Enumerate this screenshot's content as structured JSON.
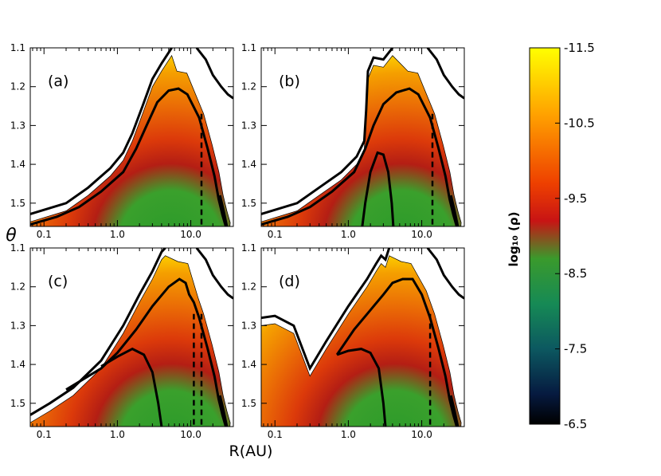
{
  "chart_data": {
    "type": "heatmap",
    "xlabel": "R(AU)",
    "ylabel": "θ",
    "x_scale": "log",
    "x_ticks": [
      "0.1",
      "1.0",
      "10.0"
    ],
    "y_ticks": [
      "1.1",
      "1.2",
      "1.3",
      "1.4",
      "1.5"
    ],
    "ylim": [
      1.1,
      1.56
    ],
    "xlim": [
      0.065,
      38
    ],
    "panels": [
      {
        "label": "(a)",
        "dashed_r": [
          14.0
        ],
        "upper_contour": [
          [
            0.065,
            1.528
          ],
          [
            0.2,
            1.5
          ],
          [
            0.4,
            1.46
          ],
          [
            0.8,
            1.41
          ],
          [
            1.2,
            1.37
          ],
          [
            1.6,
            1.32
          ],
          [
            2.2,
            1.25
          ],
          [
            3.0,
            1.18
          ],
          [
            4.0,
            1.14
          ],
          [
            5.5,
            1.1
          ]
        ],
        "upper_right": [
          [
            12,
            1.1
          ],
          [
            16,
            1.13
          ],
          [
            20,
            1.17
          ],
          [
            26,
            1.2
          ],
          [
            32,
            1.22
          ],
          [
            38,
            1.23
          ]
        ],
        "surface_contour": [
          [
            0.065,
            1.555
          ],
          [
            0.15,
            1.535
          ],
          [
            0.3,
            1.51
          ],
          [
            0.6,
            1.47
          ],
          [
            1.2,
            1.42
          ],
          [
            1.8,
            1.36
          ],
          [
            2.5,
            1.3
          ],
          [
            3.5,
            1.24
          ],
          [
            5,
            1.21
          ],
          [
            6.8,
            1.205
          ],
          [
            9,
            1.22
          ],
          [
            13,
            1.28
          ],
          [
            17,
            1.36
          ],
          [
            21,
            1.43
          ],
          [
            24,
            1.49
          ],
          [
            27,
            1.53
          ],
          [
            30,
            1.56
          ]
        ],
        "outer_contour": [
          [
            25,
            1.48
          ],
          [
            28,
            1.52
          ],
          [
            31,
            1.56
          ]
        ],
        "inner_contour": []
      },
      {
        "label": "(b)",
        "dashed_r": [
          14.0
        ],
        "upper_contour": [
          [
            0.065,
            1.528
          ],
          [
            0.2,
            1.5
          ],
          [
            0.4,
            1.46
          ],
          [
            0.8,
            1.42
          ],
          [
            1.3,
            1.38
          ],
          [
            1.65,
            1.34
          ],
          [
            1.75,
            1.26
          ],
          [
            1.85,
            1.16
          ],
          [
            2.2,
            1.125
          ],
          [
            3.0,
            1.13
          ],
          [
            4.0,
            1.1
          ]
        ],
        "upper_right": [
          [
            12,
            1.1
          ],
          [
            16,
            1.13
          ],
          [
            20,
            1.17
          ],
          [
            26,
            1.2
          ],
          [
            32,
            1.22
          ],
          [
            38,
            1.23
          ]
        ],
        "surface_contour": [
          [
            0.065,
            1.555
          ],
          [
            0.15,
            1.535
          ],
          [
            0.3,
            1.51
          ],
          [
            0.6,
            1.47
          ],
          [
            1.2,
            1.42
          ],
          [
            1.7,
            1.36
          ],
          [
            2.2,
            1.3
          ],
          [
            3,
            1.245
          ],
          [
            4.5,
            1.215
          ],
          [
            6.8,
            1.205
          ],
          [
            9,
            1.22
          ],
          [
            13,
            1.28
          ],
          [
            17,
            1.36
          ],
          [
            21,
            1.43
          ],
          [
            24,
            1.49
          ],
          [
            27,
            1.53
          ],
          [
            30,
            1.56
          ]
        ],
        "outer_contour": [
          [
            25,
            1.48
          ],
          [
            28,
            1.52
          ],
          [
            31,
            1.56
          ]
        ],
        "inner_contour": [
          [
            1.55,
            1.56
          ],
          [
            1.7,
            1.5
          ],
          [
            2.0,
            1.42
          ],
          [
            2.5,
            1.37
          ],
          [
            3.0,
            1.375
          ],
          [
            3.5,
            1.42
          ],
          [
            3.9,
            1.5
          ],
          [
            4.1,
            1.56
          ]
        ]
      },
      {
        "label": "(c)",
        "dashed_r": [
          11.0,
          14.0
        ],
        "upper_contour": [
          [
            0.065,
            1.53
          ],
          [
            0.12,
            1.5
          ],
          [
            0.25,
            1.46
          ],
          [
            0.6,
            1.39
          ],
          [
            1.2,
            1.3
          ],
          [
            2.0,
            1.22
          ],
          [
            3.0,
            1.16
          ],
          [
            4.0,
            1.11
          ],
          [
            4.5,
            1.1
          ]
        ],
        "upper_right": [
          [
            12,
            1.1
          ],
          [
            16,
            1.13
          ],
          [
            20,
            1.17
          ],
          [
            26,
            1.2
          ],
          [
            32,
            1.22
          ],
          [
            38,
            1.23
          ]
        ],
        "surface_contour": [
          [
            0.2,
            1.465
          ],
          [
            0.6,
            1.41
          ],
          [
            1.0,
            1.37
          ],
          [
            1.8,
            1.31
          ],
          [
            3,
            1.25
          ],
          [
            5,
            1.2
          ],
          [
            7,
            1.18
          ],
          [
            8.5,
            1.19
          ],
          [
            9.5,
            1.22
          ],
          [
            11,
            1.24
          ],
          [
            13,
            1.28
          ],
          [
            17,
            1.36
          ],
          [
            21,
            1.43
          ],
          [
            24,
            1.49
          ],
          [
            27,
            1.53
          ],
          [
            30,
            1.56
          ]
        ],
        "outer_contour": [
          [
            25,
            1.48
          ],
          [
            28,
            1.52
          ],
          [
            31,
            1.56
          ]
        ],
        "inner_contour": [
          [
            0.6,
            1.405
          ],
          [
            1.0,
            1.38
          ],
          [
            1.6,
            1.36
          ],
          [
            2.3,
            1.375
          ],
          [
            3.0,
            1.42
          ],
          [
            3.6,
            1.5
          ],
          [
            4.0,
            1.56
          ]
        ]
      },
      {
        "label": "(d)",
        "dashed_r": [
          13.0
        ],
        "upper_contour": [
          [
            0.065,
            1.28
          ],
          [
            0.1,
            1.275
          ],
          [
            0.18,
            1.3
          ],
          [
            0.3,
            1.41
          ],
          [
            0.5,
            1.34
          ],
          [
            1.0,
            1.25
          ],
          [
            1.8,
            1.18
          ],
          [
            2.4,
            1.14
          ],
          [
            2.8,
            1.12
          ],
          [
            3.2,
            1.13
          ],
          [
            3.6,
            1.1
          ]
        ],
        "upper_right": [
          [
            12,
            1.1
          ],
          [
            16,
            1.13
          ],
          [
            20,
            1.17
          ],
          [
            26,
            1.2
          ],
          [
            32,
            1.22
          ],
          [
            38,
            1.23
          ]
        ],
        "surface_contour": [
          [
            0.7,
            1.375
          ],
          [
            1.2,
            1.31
          ],
          [
            2,
            1.26
          ],
          [
            3,
            1.22
          ],
          [
            4,
            1.19
          ],
          [
            5.5,
            1.18
          ],
          [
            7.5,
            1.18
          ],
          [
            10,
            1.22
          ],
          [
            13,
            1.28
          ],
          [
            17,
            1.36
          ],
          [
            21,
            1.43
          ],
          [
            24,
            1.49
          ],
          [
            27,
            1.53
          ],
          [
            30,
            1.56
          ]
        ],
        "outer_contour": [
          [
            25,
            1.48
          ],
          [
            28,
            1.52
          ],
          [
            31,
            1.56
          ]
        ],
        "inner_contour": [
          [
            0.7,
            1.375
          ],
          [
            1.0,
            1.365
          ],
          [
            1.5,
            1.36
          ],
          [
            2.0,
            1.37
          ],
          [
            2.6,
            1.41
          ],
          [
            3.0,
            1.5
          ],
          [
            3.2,
            1.56
          ]
        ]
      }
    ],
    "colorbar": {
      "label": "log₁₀ (ρ)",
      "ticks": [
        "-11.5",
        "-10.5",
        "-9.5",
        "-8.5",
        "-7.5",
        "-6.5"
      ],
      "range": [
        -11.5,
        -6.5
      ]
    }
  }
}
